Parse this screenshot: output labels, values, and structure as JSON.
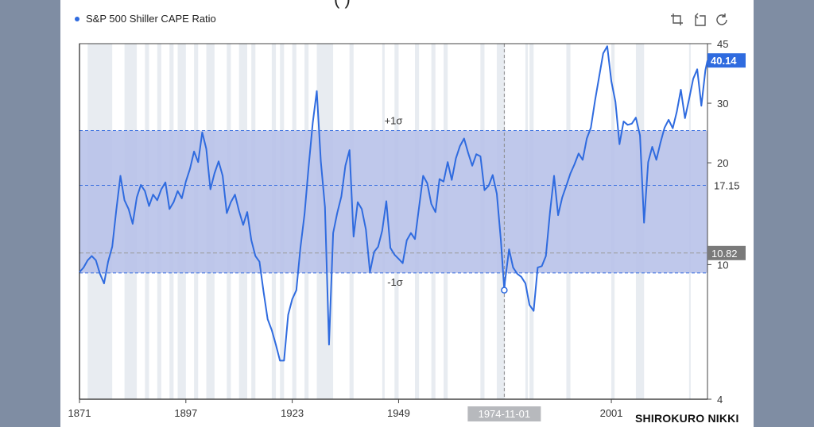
{
  "title_fragment": "(                          )",
  "toolbar": [
    {
      "name": "zoom-icon",
      "icon": "zoom"
    },
    {
      "name": "zoom-reset-icon",
      "icon": "zoom-reset"
    },
    {
      "name": "refresh-icon",
      "icon": "refresh"
    }
  ],
  "watermark": "SHIROKURO NIKKI",
  "colors": {
    "line": "#2f6bdf",
    "band": "#b8c2e9",
    "recession": "#e8ecf1",
    "mean_line": "#3a6fe0",
    "grid": "#e4e4e4"
  },
  "chart_data": {
    "type": "line",
    "title": "",
    "xlabel": "",
    "ylabel": "",
    "ylim": [
      4,
      45
    ],
    "xlim": [
      1871,
      2024.5
    ],
    "x_ticks": [
      "1871",
      "1897",
      "1923",
      "1949",
      "1974-11-01",
      "2001"
    ],
    "y_ticks": [
      "4",
      "10",
      "20",
      "30",
      "45"
    ],
    "grid": false,
    "legend": "top-left",
    "series": [
      {
        "name": "S&P 500 Shiller CAPE Ratio",
        "points": [
          [
            1871,
            9.5
          ],
          [
            1872,
            9.8
          ],
          [
            1873,
            10.3
          ],
          [
            1874,
            10.6
          ],
          [
            1875,
            10.3
          ],
          [
            1876,
            9.4
          ],
          [
            1877,
            8.8
          ],
          [
            1878,
            10.2
          ],
          [
            1879,
            11.3
          ],
          [
            1880,
            14.5
          ],
          [
            1881,
            18.3
          ],
          [
            1882,
            15.5
          ],
          [
            1883,
            14.6
          ],
          [
            1884,
            13.2
          ],
          [
            1885,
            15.8
          ],
          [
            1886,
            17.2
          ],
          [
            1887,
            16.5
          ],
          [
            1888,
            14.9
          ],
          [
            1889,
            16.1
          ],
          [
            1890,
            15.5
          ],
          [
            1891,
            16.7
          ],
          [
            1892,
            17.5
          ],
          [
            1893,
            14.6
          ],
          [
            1894,
            15.3
          ],
          [
            1895,
            16.5
          ],
          [
            1896,
            15.7
          ],
          [
            1897,
            17.6
          ],
          [
            1898,
            19.2
          ],
          [
            1899,
            21.6
          ],
          [
            1900,
            20.1
          ],
          [
            1901,
            24.6
          ],
          [
            1902,
            22.0
          ],
          [
            1903,
            16.7
          ],
          [
            1904,
            18.6
          ],
          [
            1905,
            20.2
          ],
          [
            1906,
            18.3
          ],
          [
            1907,
            14.2
          ],
          [
            1908,
            15.3
          ],
          [
            1909,
            16.1
          ],
          [
            1910,
            14.4
          ],
          [
            1911,
            13.1
          ],
          [
            1912,
            14.3
          ],
          [
            1913,
            11.8
          ],
          [
            1914,
            10.6
          ],
          [
            1915,
            10.2
          ],
          [
            1916,
            8.3
          ],
          [
            1917,
            6.9
          ],
          [
            1918,
            6.4
          ],
          [
            1919,
            5.8
          ],
          [
            1920,
            5.2
          ],
          [
            1921,
            5.2
          ],
          [
            1922,
            7.1
          ],
          [
            1923,
            7.9
          ],
          [
            1924,
            8.4
          ],
          [
            1925,
            11.2
          ],
          [
            1926,
            14.1
          ],
          [
            1927,
            19.4
          ],
          [
            1928,
            26.2
          ],
          [
            1929,
            32.6
          ],
          [
            1930,
            20.2
          ],
          [
            1931,
            14.8
          ],
          [
            1932,
            5.8
          ],
          [
            1933,
            12.4
          ],
          [
            1934,
            14.2
          ],
          [
            1935,
            15.9
          ],
          [
            1936,
            19.6
          ],
          [
            1937,
            21.8
          ],
          [
            1938,
            12.1
          ],
          [
            1939,
            15.3
          ],
          [
            1940,
            14.6
          ],
          [
            1941,
            12.7
          ],
          [
            1942,
            9.5
          ],
          [
            1943,
            10.9
          ],
          [
            1944,
            11.3
          ],
          [
            1945,
            12.6
          ],
          [
            1946,
            15.4
          ],
          [
            1947,
            11.2
          ],
          [
            1948,
            10.7
          ],
          [
            1949,
            10.4
          ],
          [
            1950,
            10.1
          ],
          [
            1951,
            11.8
          ],
          [
            1952,
            12.4
          ],
          [
            1953,
            11.9
          ],
          [
            1954,
            14.8
          ],
          [
            1955,
            18.3
          ],
          [
            1956,
            17.4
          ],
          [
            1957,
            15.1
          ],
          [
            1958,
            14.3
          ],
          [
            1959,
            17.9
          ],
          [
            1960,
            17.6
          ],
          [
            1961,
            20.1
          ],
          [
            1962,
            17.8
          ],
          [
            1963,
            20.6
          ],
          [
            1964,
            22.4
          ],
          [
            1965,
            23.6
          ],
          [
            1966,
            21.4
          ],
          [
            1967,
            19.6
          ],
          [
            1968,
            21.2
          ],
          [
            1969,
            20.9
          ],
          [
            1970,
            16.6
          ],
          [
            1971,
            17.1
          ],
          [
            1972,
            18.4
          ],
          [
            1973,
            16.2
          ],
          [
            1974,
            11.8
          ],
          [
            1974.83,
            8.4
          ],
          [
            1975,
            8.9
          ],
          [
            1976,
            11.1
          ],
          [
            1977,
            9.8
          ],
          [
            1978,
            9.4
          ],
          [
            1979,
            9.2
          ],
          [
            1980,
            8.8
          ],
          [
            1981,
            7.6
          ],
          [
            1982,
            7.3
          ],
          [
            1983,
            9.8
          ],
          [
            1984,
            9.9
          ],
          [
            1985,
            10.6
          ],
          [
            1986,
            14.3
          ],
          [
            1987,
            18.3
          ],
          [
            1988,
            14.0
          ],
          [
            1989,
            15.8
          ],
          [
            1990,
            17.1
          ],
          [
            1991,
            18.6
          ],
          [
            1992,
            19.8
          ],
          [
            1993,
            21.3
          ],
          [
            1994,
            20.4
          ],
          [
            1995,
            23.6
          ],
          [
            1996,
            25.4
          ],
          [
            1997,
            30.5
          ],
          [
            1998,
            35.8
          ],
          [
            1999,
            42.1
          ],
          [
            2000,
            44.2
          ],
          [
            2001,
            34.8
          ],
          [
            2002,
            30.3
          ],
          [
            2003,
            22.7
          ],
          [
            2004,
            26.5
          ],
          [
            2005,
            25.9
          ],
          [
            2006,
            26.1
          ],
          [
            2007,
            27.2
          ],
          [
            2008,
            24.1
          ],
          [
            2009,
            13.3
          ],
          [
            2010,
            20.1
          ],
          [
            2011,
            22.3
          ],
          [
            2012,
            20.4
          ],
          [
            2013,
            22.9
          ],
          [
            2014,
            25.4
          ],
          [
            2015,
            26.8
          ],
          [
            2016,
            25.3
          ],
          [
            2017,
            28.3
          ],
          [
            2018,
            32.9
          ],
          [
            2019,
            27.1
          ],
          [
            2020,
            30.8
          ],
          [
            2021,
            35.4
          ],
          [
            2022,
            37.8
          ],
          [
            2023,
            29.5
          ],
          [
            2024,
            37.6
          ],
          [
            2024.5,
            40.14
          ]
        ]
      }
    ],
    "bands": [
      {
        "upper": 24.9,
        "lower": 9.45,
        "upper_label": "+1σ",
        "lower_label": "-1σ"
      }
    ],
    "reference_lines": [
      {
        "value": 17.15,
        "label": "17.15"
      },
      {
        "value": 10.82,
        "label": "10.82"
      }
    ],
    "current_value_label": "40.14",
    "cursor": {
      "x": 1974.83,
      "label": "1974-11-01"
    },
    "recession_shading": [
      [
        1873,
        1879
      ],
      [
        1882,
        1885
      ],
      [
        1887,
        1888
      ],
      [
        1890,
        1891
      ],
      [
        1893,
        1894
      ],
      [
        1895,
        1897
      ],
      [
        1899,
        1900
      ],
      [
        1902,
        1904
      ],
      [
        1907,
        1908
      ],
      [
        1910,
        1912
      ],
      [
        1913,
        1914
      ],
      [
        1918,
        1919
      ],
      [
        1920,
        1921
      ],
      [
        1923,
        1924
      ],
      [
        1926,
        1927
      ],
      [
        1929,
        1933
      ],
      [
        1937,
        1938
      ],
      [
        1945,
        1945.6
      ],
      [
        1948,
        1949
      ],
      [
        1953,
        1954
      ],
      [
        1957,
        1958
      ],
      [
        1960,
        1961
      ],
      [
        1969,
        1970
      ],
      [
        1973,
        1975
      ],
      [
        1980,
        1980.6
      ],
      [
        1981,
        1982
      ],
      [
        1990,
        1991
      ],
      [
        2001,
        2001.8
      ],
      [
        2007,
        2009
      ],
      [
        2020,
        2020.4
      ]
    ]
  }
}
